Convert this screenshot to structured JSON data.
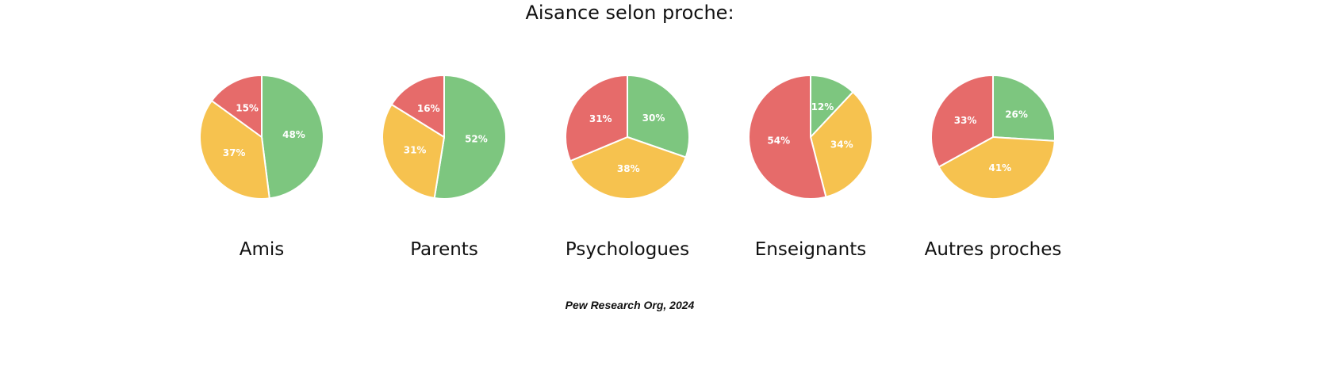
{
  "title": "Aisance selon proche:",
  "source": "Pew Research Org, 2024",
  "colors": {
    "green": "#7dc67f",
    "yellow": "#f6c24f",
    "red": "#e66b6a"
  },
  "chart_data": [
    {
      "type": "pie",
      "title": "Amis",
      "slices": [
        {
          "value": 48,
          "label": "48%",
          "color": "#7dc67f"
        },
        {
          "value": 37,
          "label": "37%",
          "color": "#f6c24f"
        },
        {
          "value": 15,
          "label": "15%",
          "color": "#e66b6a"
        }
      ]
    },
    {
      "type": "pie",
      "title": "Parents",
      "slices": [
        {
          "value": 52,
          "label": "52%",
          "color": "#7dc67f"
        },
        {
          "value": 31,
          "label": "31%",
          "color": "#f6c24f"
        },
        {
          "value": 16,
          "label": "16%",
          "color": "#e66b6a"
        }
      ]
    },
    {
      "type": "pie",
      "title": "Psychologues",
      "slices": [
        {
          "value": 30,
          "label": "30%",
          "color": "#7dc67f"
        },
        {
          "value": 38,
          "label": "38%",
          "color": "#f6c24f"
        },
        {
          "value": 31,
          "label": "31%",
          "color": "#e66b6a"
        }
      ]
    },
    {
      "type": "pie",
      "title": "Enseignants",
      "slices": [
        {
          "value": 12,
          "label": "12%",
          "color": "#7dc67f"
        },
        {
          "value": 34,
          "label": "34%",
          "color": "#f6c24f"
        },
        {
          "value": 54,
          "label": "54%",
          "color": "#e66b6a"
        }
      ]
    },
    {
      "type": "pie",
      "title": "Autres proches",
      "slices": [
        {
          "value": 26,
          "label": "26%",
          "color": "#7dc67f"
        },
        {
          "value": 41,
          "label": "41%",
          "color": "#f6c24f"
        },
        {
          "value": 33,
          "label": "33%",
          "color": "#e66b6a"
        }
      ]
    }
  ]
}
